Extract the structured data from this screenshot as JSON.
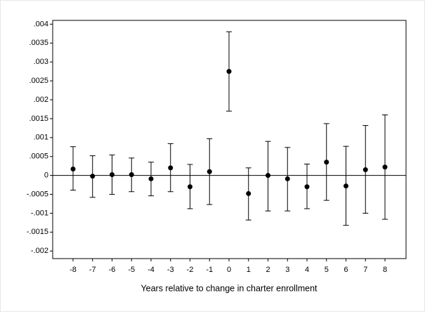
{
  "chart_data": {
    "type": "errorbar",
    "x_label": "Years relative to change in charter enrollment",
    "categories": [
      "-8",
      "-7",
      "-6",
      "-5",
      "-4",
      "-3",
      "-2",
      "-1",
      "0",
      "1",
      "2",
      "3",
      "4",
      "5",
      "6",
      "7",
      "8"
    ],
    "series": [
      {
        "color": "#000000",
        "values": [
          0.00017,
          -2e-05,
          2e-05,
          2e-05,
          -9e-05,
          0.0002,
          -0.0003,
          0.0001,
          0.00275,
          -0.00048,
          0,
          -9e-05,
          -0.0003,
          0.00035,
          -0.00028,
          0.00015,
          0.00022
        ],
        "ci_lower": [
          -0.00039,
          -0.00058,
          -0.0005,
          -0.00043,
          -0.00054,
          -0.00043,
          -0.00088,
          -0.00077,
          0.0017,
          -0.00118,
          -0.00094,
          -0.00094,
          -0.00088,
          -0.00066,
          -0.00132,
          -0.001,
          -0.00116
        ],
        "ci_upper": [
          0.00076,
          0.00052,
          0.00054,
          0.00046,
          0.00035,
          0.00084,
          0.00029,
          0.00097,
          0.0038,
          0.0002,
          0.0009,
          0.00074,
          0.0003,
          0.00137,
          0.00077,
          0.00132,
          0.0016
        ]
      }
    ],
    "ylim": [
      -0.0022,
      0.0041
    ],
    "yticks": [
      {
        "value": 0.004,
        "label": ".004"
      },
      {
        "value": 0.0035,
        "label": ".0035"
      },
      {
        "value": 0.003,
        "label": ".003"
      },
      {
        "value": 0.0025,
        "label": ".0025"
      },
      {
        "value": 0.002,
        "label": ".002"
      },
      {
        "value": 0.0015,
        "label": ".0015"
      },
      {
        "value": 0.001,
        "label": ".001"
      },
      {
        "value": 0.0005,
        "label": ".0005"
      },
      0,
      {
        "value": -0.0005,
        "label": "-.0005"
      },
      {
        "value": -0.001,
        "label": "-.001"
      },
      {
        "value": -0.0015,
        "label": "-.0015"
      },
      {
        "value": -0.002,
        "label": "-.002"
      }
    ],
    "hline": 0,
    "grid": false
  }
}
